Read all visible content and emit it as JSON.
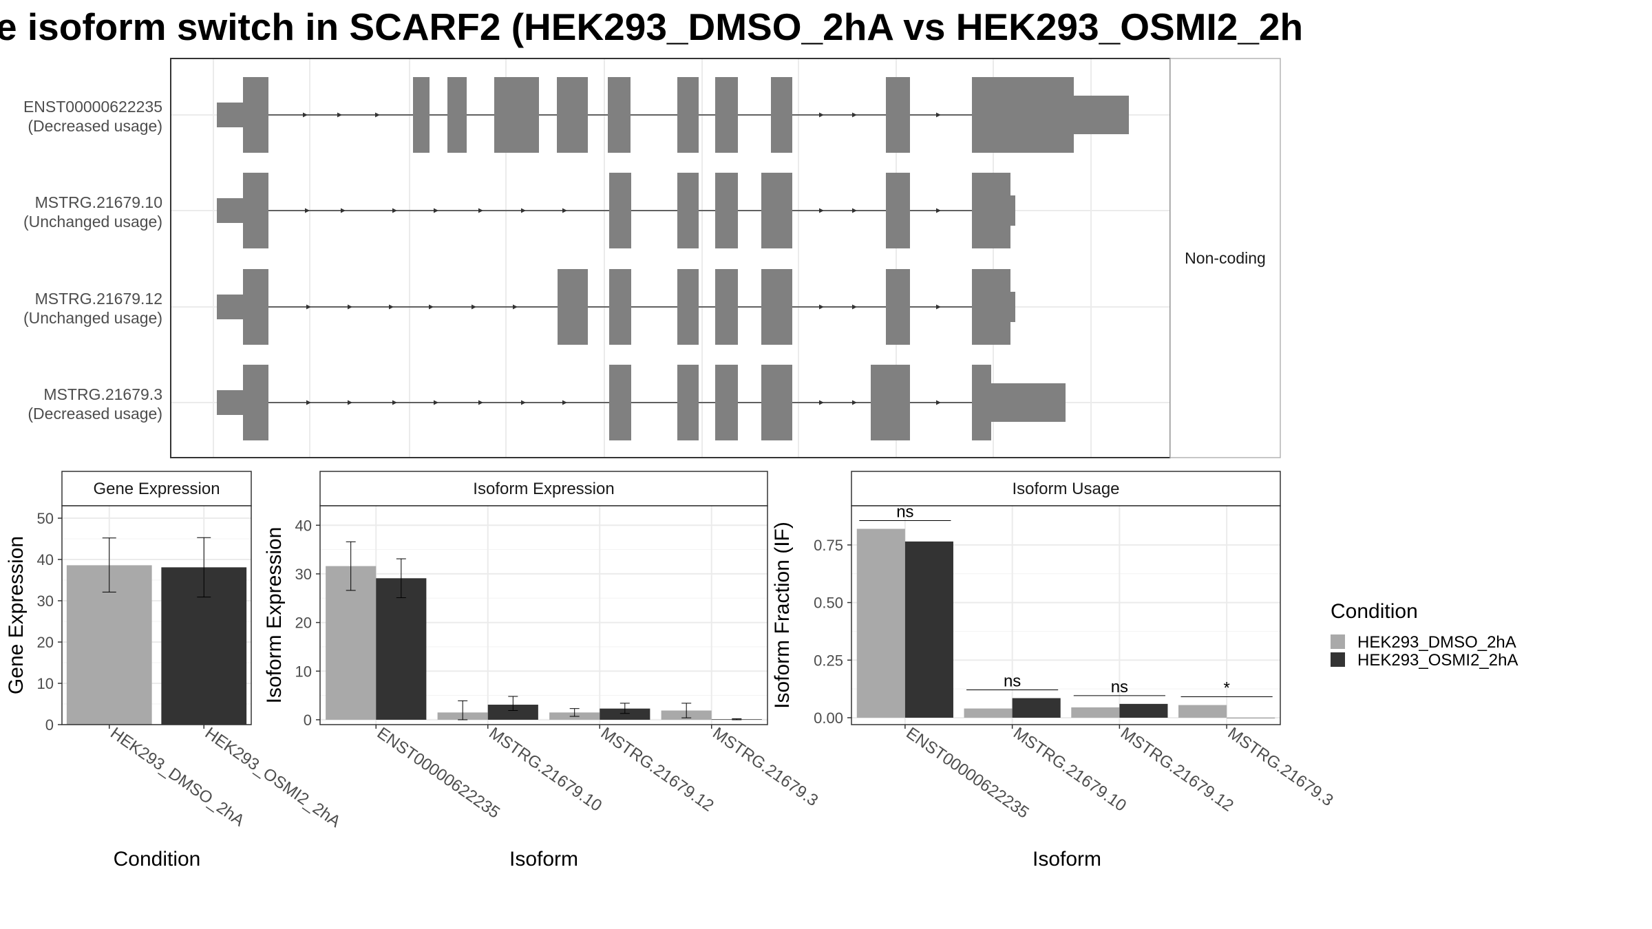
{
  "title": "e isoform switch in SCARF2 (HEK293_DMSO_2hA vs HEK293_OSMI2_2h",
  "colors": {
    "exon": "#808080",
    "cond1": "#a9a9a9",
    "cond2": "#333333",
    "grid": "#ebebeb",
    "panel_border": "#333333",
    "strip_fill": "#ffffff",
    "text": "#4d4d4d"
  },
  "structure": {
    "category_label": "Non-coding",
    "isoforms": [
      {
        "id": "ENST00000622235",
        "usage": "(Decreased usage)"
      },
      {
        "id": "MSTRG.21679.10",
        "usage": "(Unchanged usage)"
      },
      {
        "id": "MSTRG.21679.12",
        "usage": "(Unchanged usage)"
      },
      {
        "id": "MSTRG.21679.3",
        "usage": "(Decreased usage)"
      }
    ]
  },
  "legend": {
    "title": "Condition",
    "entries": [
      "HEK293_DMSO_2hA",
      "HEK293_OSMI2_2hA"
    ]
  },
  "chart_data": [
    {
      "type": "bar",
      "panel": "gene",
      "strip": "Gene Expression",
      "ylabel": "Gene Expression",
      "xlabel": "Condition",
      "ylim": [
        0,
        53
      ],
      "yticks": [
        0,
        10,
        20,
        30,
        40,
        50
      ],
      "categories": [
        "HEK293_DMSO_2hA",
        "HEK293_OSMI2_2hA"
      ],
      "values": [
        38.6,
        38.1
      ],
      "err_low": [
        32.1,
        30.9
      ],
      "err_high": [
        45.2,
        45.3
      ],
      "grid": true
    },
    {
      "type": "bar",
      "panel": "isoform_expression",
      "strip": "Isoform Expression",
      "ylabel": "Isoform Expression",
      "xlabel": "Isoform",
      "ylim": [
        -1,
        44
      ],
      "yticks": [
        0,
        10,
        20,
        30,
        40
      ],
      "categories": [
        "ENST00000622235",
        "MSTRG.21679.10",
        "MSTRG.21679.12",
        "MSTRG.21679.3"
      ],
      "series": [
        {
          "name": "HEK293_DMSO_2hA",
          "values": [
            31.6,
            1.5,
            1.5,
            1.9
          ],
          "err_low": [
            26.6,
            0.0,
            0.7,
            0.4
          ],
          "err_high": [
            36.6,
            3.9,
            2.3,
            3.4
          ]
        },
        {
          "name": "HEK293_OSMI2_2hA",
          "values": [
            29.1,
            3.1,
            2.3,
            0.1
          ],
          "err_low": [
            25.1,
            1.9,
            1.3,
            0.0
          ],
          "err_high": [
            33.1,
            4.8,
            3.4,
            0.2
          ]
        }
      ],
      "grid": true
    },
    {
      "type": "bar",
      "panel": "isoform_usage",
      "strip": "Isoform Usage",
      "ylabel": "Isoform Fraction (IF)",
      "xlabel": "Isoform",
      "ylim": [
        -0.03,
        0.92
      ],
      "yticks": [
        0.0,
        0.25,
        0.5,
        0.75
      ],
      "ytick_labels": [
        "0.00",
        "0.25",
        "0.50",
        "0.75"
      ],
      "categories": [
        "ENST00000622235",
        "MSTRG.21679.10",
        "MSTRG.21679.12",
        "MSTRG.21679.3"
      ],
      "series": [
        {
          "name": "HEK293_DMSO_2hA",
          "values": [
            0.82,
            0.04,
            0.045,
            0.055
          ]
        },
        {
          "name": "HEK293_OSMI2_2hA",
          "values": [
            0.765,
            0.085,
            0.06,
            0.0
          ]
        }
      ],
      "significance": [
        "ns",
        "ns",
        "ns",
        "*"
      ],
      "grid": true
    }
  ]
}
